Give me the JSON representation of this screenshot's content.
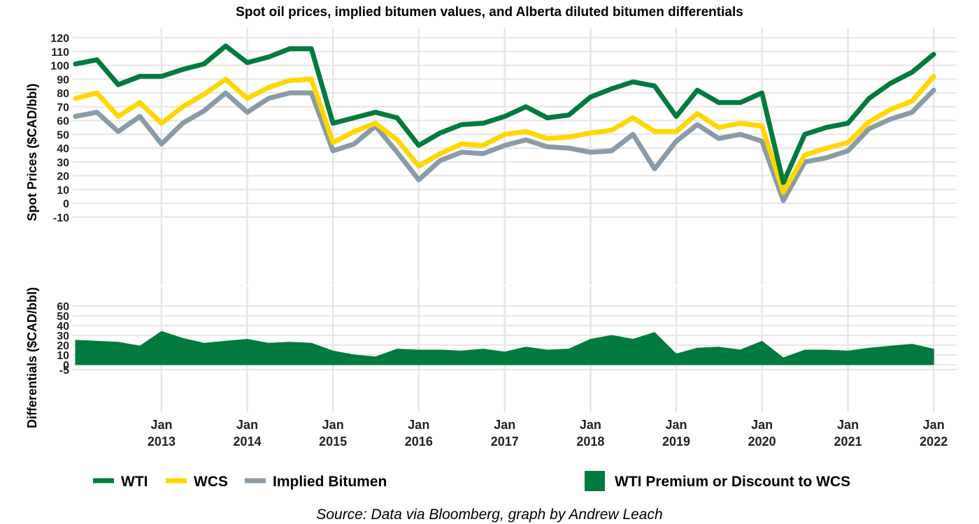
{
  "chart_data": [
    {
      "type": "line",
      "title": "Spot oil prices, implied bitumen values, and Alberta diluted bitumen differentials",
      "ylabel": "Spot Prices ($CAD/bbl)",
      "ylim": [
        -10,
        120
      ],
      "yticks": [
        120,
        110,
        100,
        90,
        80,
        70,
        60,
        50,
        40,
        30,
        20,
        10,
        0,
        -10
      ],
      "x_tick_labels": [
        {
          "month": "Jan",
          "year": "2013"
        },
        {
          "month": "Jan",
          "year": "2014"
        },
        {
          "month": "Jan",
          "year": "2015"
        },
        {
          "month": "Jan",
          "year": "2016"
        },
        {
          "month": "Jan",
          "year": "2017"
        },
        {
          "month": "Jan",
          "year": "2018"
        },
        {
          "month": "Jan",
          "year": "2019"
        },
        {
          "month": "Jan",
          "year": "2020"
        },
        {
          "month": "Jan",
          "year": "2021"
        },
        {
          "month": "Jan",
          "year": "2022"
        }
      ],
      "x": [
        "2012-01",
        "2012-04",
        "2012-07",
        "2012-10",
        "2013-01",
        "2013-04",
        "2013-07",
        "2013-10",
        "2014-01",
        "2014-04",
        "2014-07",
        "2014-10",
        "2015-01",
        "2015-04",
        "2015-07",
        "2015-10",
        "2016-01",
        "2016-04",
        "2016-07",
        "2016-10",
        "2017-01",
        "2017-04",
        "2017-07",
        "2017-10",
        "2018-01",
        "2018-04",
        "2018-07",
        "2018-10",
        "2019-01",
        "2019-04",
        "2019-07",
        "2019-10",
        "2020-01",
        "2020-04",
        "2020-07",
        "2020-10",
        "2021-01",
        "2021-04",
        "2021-07",
        "2021-10",
        "2022-01"
      ],
      "series": [
        {
          "name": "WTI",
          "color": "#007a3d",
          "values": [
            101,
            104,
            86,
            92,
            92,
            97,
            101,
            114,
            102,
            106,
            112,
            112,
            58,
            62,
            66,
            62,
            42,
            51,
            57,
            58,
            63,
            70,
            62,
            64,
            77,
            83,
            88,
            85,
            63,
            82,
            73,
            73,
            80,
            15,
            50,
            55,
            58,
            76,
            87,
            95,
            108
          ]
        },
        {
          "name": "WCS",
          "color": "#ffd700",
          "values": [
            76,
            80,
            63,
            73,
            58,
            70,
            79,
            90,
            76,
            84,
            89,
            90,
            44,
            52,
            58,
            46,
            27,
            36,
            43,
            42,
            50,
            52,
            47,
            48,
            51,
            53,
            62,
            52,
            52,
            65,
            55,
            58,
            56,
            8,
            35,
            40,
            44,
            59,
            68,
            74,
            92
          ]
        },
        {
          "name": "Implied Bitumen",
          "color": "#8a9ba8",
          "values": [
            63,
            66,
            52,
            63,
            43,
            58,
            67,
            80,
            66,
            76,
            80,
            80,
            38,
            43,
            56,
            37,
            17,
            31,
            37,
            36,
            42,
            46,
            41,
            40,
            37,
            38,
            50,
            25,
            45,
            57,
            47,
            50,
            45,
            2,
            30,
            33,
            38,
            54,
            61,
            66,
            82
          ]
        }
      ]
    },
    {
      "type": "area",
      "ylabel": "Differentials ($CAD/bbl)",
      "ylim": [
        -5,
        60
      ],
      "yticks": [
        60,
        50,
        40,
        30,
        20,
        10,
        0,
        -5
      ],
      "x": [
        "2012-01",
        "2012-04",
        "2012-07",
        "2012-10",
        "2013-01",
        "2013-04",
        "2013-07",
        "2013-10",
        "2014-01",
        "2014-04",
        "2014-07",
        "2014-10",
        "2015-01",
        "2015-04",
        "2015-07",
        "2015-10",
        "2016-01",
        "2016-04",
        "2016-07",
        "2016-10",
        "2017-01",
        "2017-04",
        "2017-07",
        "2017-10",
        "2018-01",
        "2018-04",
        "2018-07",
        "2018-10",
        "2019-01",
        "2019-04",
        "2019-07",
        "2019-10",
        "2020-01",
        "2020-04",
        "2020-07",
        "2020-10",
        "2021-01",
        "2021-04",
        "2021-07",
        "2021-10",
        "2022-01"
      ],
      "series": [
        {
          "name": "WTI Premium or Discount to WCS",
          "color": "#007a3d",
          "values": [
            25,
            24,
            23,
            19,
            34,
            27,
            22,
            24,
            26,
            22,
            23,
            22,
            14,
            10,
            8,
            16,
            15,
            15,
            14,
            16,
            13,
            18,
            15,
            16,
            26,
            30,
            26,
            33,
            11,
            17,
            18,
            15,
            24,
            7,
            15,
            15,
            14,
            17,
            19,
            21,
            16
          ]
        }
      ]
    }
  ],
  "legend": {
    "items": [
      {
        "label": "WTI",
        "color": "#007a3d"
      },
      {
        "label": "WCS",
        "color": "#ffd700"
      },
      {
        "label": "Implied Bitumen",
        "color": "#8a9ba8"
      }
    ],
    "area_item": {
      "label": "WTI Premium or Discount to WCS",
      "color": "#007a3d"
    }
  },
  "caption": "Source: Data via Bloomberg, graph by Andrew Leach"
}
